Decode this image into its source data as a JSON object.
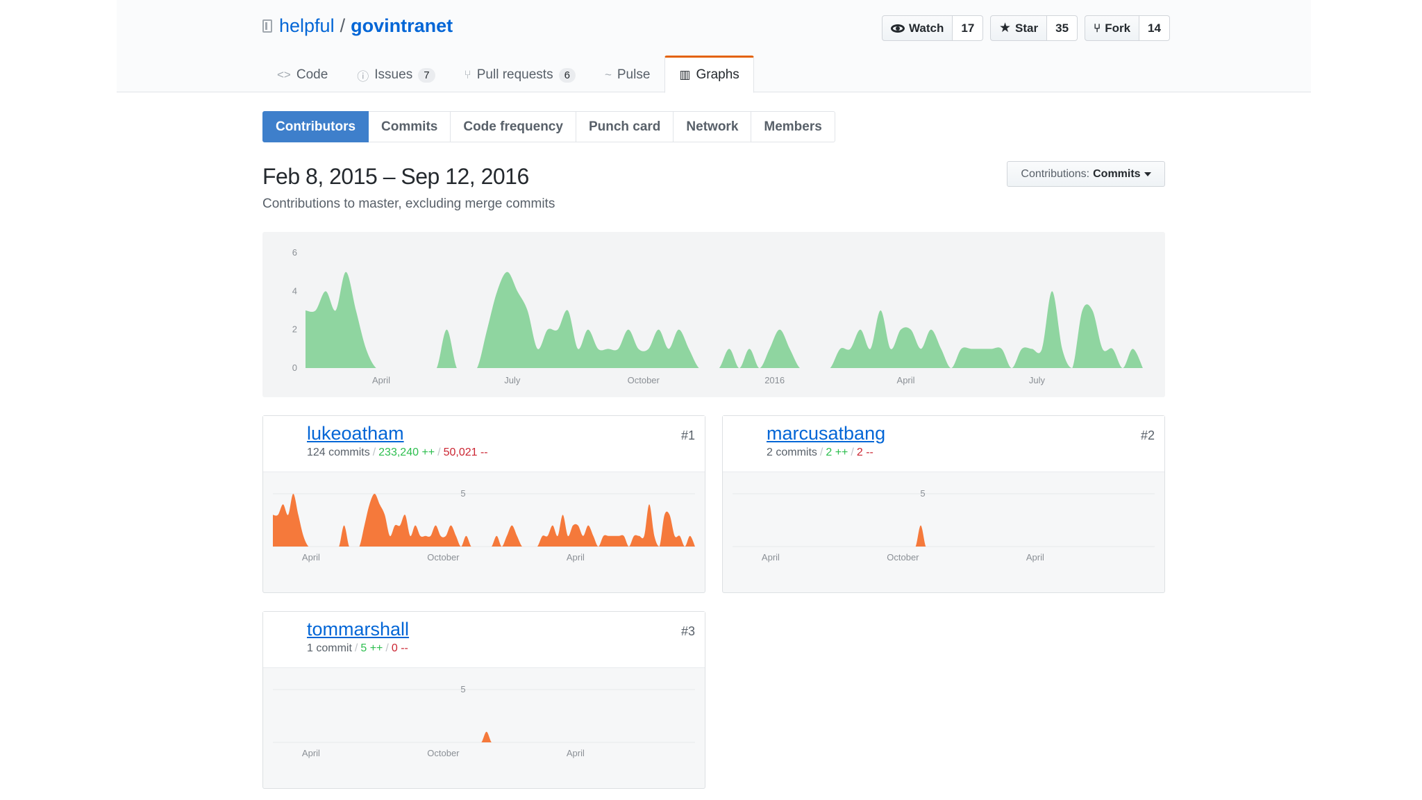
{
  "repo": {
    "owner": "helpful",
    "name": "govintranet"
  },
  "actions": [
    {
      "label": "Watch",
      "count": "17",
      "icon": "eye-icon"
    },
    {
      "label": "Star",
      "count": "35",
      "icon": "star-icon"
    },
    {
      "label": "Fork",
      "count": "14",
      "icon": "fork-icon"
    }
  ],
  "nav": [
    {
      "label": "Code",
      "icon": "code-icon",
      "glyph": "<>",
      "counter": ""
    },
    {
      "label": "Issues",
      "icon": "issue-icon",
      "glyph": "ⓘ",
      "counter": "7"
    },
    {
      "label": "Pull requests",
      "icon": "pull-request-icon",
      "glyph": "⑂",
      "counter": "6"
    },
    {
      "label": "Pulse",
      "icon": "pulse-icon",
      "glyph": "~",
      "counter": ""
    },
    {
      "label": "Graphs",
      "icon": "graph-icon",
      "glyph": "▥",
      "counter": "",
      "selected": true
    }
  ],
  "subnav": [
    "Contributors",
    "Commits",
    "Code frequency",
    "Punch card",
    "Network",
    "Members"
  ],
  "subnav_selected": "Contributors",
  "date_range": "Feb 8, 2015 – Sep 12, 2016",
  "range_subtitle": "Contributions to master, excluding merge commits",
  "contributions_select": {
    "label": "Contributions:",
    "value": "Commits"
  },
  "colors": {
    "overall": "#8fd5a0",
    "person": "#f5793b",
    "link": "#0366d6",
    "selected_tab": "#3e7fcb",
    "nav_accent": "#e36209"
  },
  "chart_data": [
    {
      "type": "area",
      "title": "",
      "y_ticks": [
        0,
        2,
        4,
        6
      ],
      "ylim": [
        0,
        6
      ],
      "x_tick_labels": [
        "April",
        "July",
        "October",
        "2016",
        "April",
        "July"
      ],
      "x_tick_weeks": [
        7.5,
        20.5,
        33.5,
        46.5,
        59.5,
        72.5
      ],
      "xlim_weeks": [
        0,
        83
      ],
      "weekly_commits": [
        3,
        3,
        4,
        3,
        5,
        3,
        1,
        0,
        0,
        0,
        0,
        0,
        0,
        0,
        2,
        0,
        0,
        0,
        2,
        4,
        5,
        4,
        3,
        1,
        2,
        2,
        3,
        1,
        2,
        1,
        1,
        1,
        2,
        1,
        1,
        2,
        1,
        2,
        1,
        0,
        0,
        0,
        1,
        0,
        1,
        0,
        1,
        2,
        1,
        0,
        0,
        0,
        0,
        1,
        1,
        2,
        1,
        3,
        1,
        2,
        2,
        1,
        2,
        1,
        0,
        1,
        1,
        1,
        1,
        1,
        0,
        1,
        1,
        1,
        4,
        1,
        0,
        3,
        3,
        1,
        1,
        0,
        1,
        0
      ]
    },
    {
      "type": "area",
      "contributor": "lukeoatham",
      "ylim": [
        0,
        5
      ],
      "y_ticks": [
        5
      ],
      "x_tick_labels": [
        "April",
        "October",
        "April"
      ],
      "x_tick_weeks": [
        7.5,
        33.5,
        59.5
      ],
      "xlim_weeks": [
        0,
        83
      ]
    },
    {
      "type": "area",
      "contributor": "marcusatbang",
      "ylim": [
        0,
        5
      ],
      "y_ticks": [
        5
      ],
      "x_tick_labels": [
        "April",
        "October",
        "April"
      ],
      "x_tick_weeks": [
        7.5,
        33.5,
        59.5
      ],
      "xlim_weeks": [
        0,
        83
      ],
      "weekly_commits_nonzero": [
        {
          "week": 37,
          "commits": 2
        }
      ]
    },
    {
      "type": "area",
      "contributor": "tommarshall",
      "ylim": [
        0,
        5
      ],
      "y_ticks": [
        5
      ],
      "x_tick_labels": [
        "April",
        "October",
        "April"
      ],
      "x_tick_weeks": [
        7.5,
        33.5,
        59.5
      ],
      "xlim_weeks": [
        0,
        83
      ],
      "weekly_commits_nonzero": [
        {
          "week": 42,
          "commits": 1
        }
      ]
    }
  ],
  "contributors": [
    {
      "name": "lukeoatham",
      "rank": "#1",
      "commits": "124 commits",
      "additions": "233,240 ++",
      "deletions": "50,021 --"
    },
    {
      "name": "marcusatbang",
      "rank": "#2",
      "commits": "2 commits",
      "additions": "2 ++",
      "deletions": "2 --"
    },
    {
      "name": "tommarshall",
      "rank": "#3",
      "commits": "1 commit",
      "additions": "5 ++",
      "deletions": "0 --"
    }
  ]
}
